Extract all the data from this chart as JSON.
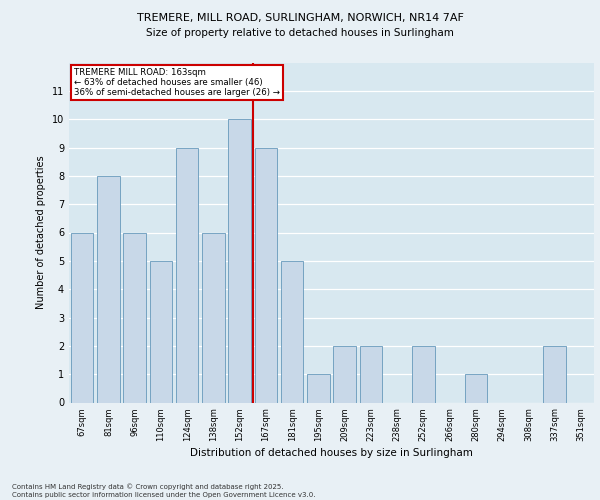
{
  "title_line1": "TREMERE, MILL ROAD, SURLINGHAM, NORWICH, NR14 7AF",
  "title_line2": "Size of property relative to detached houses in Surlingham",
  "xlabel": "Distribution of detached houses by size in Surlingham",
  "ylabel": "Number of detached properties",
  "categories": [
    "67sqm",
    "81sqm",
    "96sqm",
    "110sqm",
    "124sqm",
    "138sqm",
    "152sqm",
    "167sqm",
    "181sqm",
    "195sqm",
    "209sqm",
    "223sqm",
    "238sqm",
    "252sqm",
    "266sqm",
    "280sqm",
    "294sqm",
    "308sqm",
    "337sqm",
    "351sqm"
  ],
  "values": [
    6,
    8,
    6,
    5,
    9,
    6,
    10,
    9,
    5,
    1,
    2,
    2,
    0,
    2,
    0,
    1,
    0,
    0,
    2,
    0
  ],
  "bar_color": "#c8d8e8",
  "bar_edge_color": "#6699bb",
  "highlight_line_value": 6.5,
  "highlight_line_color": "#cc0000",
  "annotation_title": "TREMERE MILL ROAD: 163sqm",
  "annotation_line1": "← 63% of detached houses are smaller (46)",
  "annotation_line2": "36% of semi-detached houses are larger (26) →",
  "annotation_box_color": "#ffffff",
  "annotation_box_edge_color": "#cc0000",
  "ylim": [
    0,
    12
  ],
  "yticks": [
    0,
    1,
    2,
    3,
    4,
    5,
    6,
    7,
    8,
    9,
    10,
    11
  ],
  "fig_background": "#e8f0f5",
  "ax_background": "#d8e8f0",
  "grid_color": "#ffffff",
  "footer": "Contains HM Land Registry data © Crown copyright and database right 2025.\nContains public sector information licensed under the Open Government Licence v3.0."
}
